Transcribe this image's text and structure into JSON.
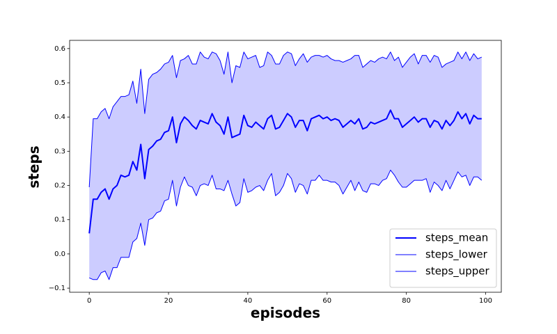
{
  "chart_data": {
    "type": "line",
    "xlabel": "episodes",
    "ylabel": "steps",
    "x": [
      0,
      1,
      2,
      3,
      4,
      5,
      6,
      7,
      8,
      9,
      10,
      11,
      12,
      13,
      14,
      15,
      16,
      17,
      18,
      19,
      20,
      21,
      22,
      23,
      24,
      25,
      26,
      27,
      28,
      29,
      30,
      31,
      32,
      33,
      34,
      35,
      36,
      37,
      38,
      39,
      40,
      41,
      42,
      43,
      44,
      45,
      46,
      47,
      48,
      49,
      50,
      51,
      52,
      53,
      54,
      55,
      56,
      57,
      58,
      59,
      60,
      61,
      62,
      63,
      64,
      65,
      66,
      67,
      68,
      69,
      70,
      71,
      72,
      73,
      74,
      75,
      76,
      77,
      78,
      79,
      80,
      81,
      82,
      83,
      84,
      85,
      86,
      87,
      88,
      89,
      90,
      91,
      92,
      93,
      94,
      95,
      96,
      97,
      98,
      99
    ],
    "series": [
      {
        "name": "steps_mean",
        "color": "#0000ff",
        "linewidth": 2,
        "values": [
          0.06,
          0.16,
          0.16,
          0.18,
          0.19,
          0.16,
          0.19,
          0.2,
          0.23,
          0.225,
          0.23,
          0.27,
          0.245,
          0.32,
          0.22,
          0.305,
          0.315,
          0.33,
          0.335,
          0.355,
          0.36,
          0.4,
          0.325,
          0.38,
          0.4,
          0.39,
          0.375,
          0.365,
          0.39,
          0.385,
          0.38,
          0.41,
          0.385,
          0.375,
          0.35,
          0.4,
          0.34,
          0.345,
          0.35,
          0.405,
          0.375,
          0.37,
          0.385,
          0.375,
          0.365,
          0.395,
          0.405,
          0.365,
          0.37,
          0.39,
          0.41,
          0.4,
          0.37,
          0.39,
          0.39,
          0.36,
          0.395,
          0.4,
          0.405,
          0.395,
          0.4,
          0.39,
          0.395,
          0.39,
          0.37,
          0.38,
          0.39,
          0.38,
          0.395,
          0.365,
          0.37,
          0.385,
          0.38,
          0.385,
          0.39,
          0.395,
          0.42,
          0.395,
          0.395,
          0.37,
          0.38,
          0.39,
          0.4,
          0.385,
          0.395,
          0.395,
          0.37,
          0.39,
          0.385,
          0.365,
          0.39,
          0.375,
          0.39,
          0.415,
          0.395,
          0.41,
          0.38,
          0.405,
          0.395,
          0.395
        ]
      },
      {
        "name": "steps_lower",
        "color": "#0000ff",
        "linewidth": 1,
        "values": [
          -0.07,
          -0.075,
          -0.075,
          -0.055,
          -0.05,
          -0.075,
          -0.04,
          -0.04,
          -0.01,
          -0.01,
          -0.01,
          0.035,
          0.045,
          0.09,
          0.025,
          0.1,
          0.105,
          0.12,
          0.125,
          0.155,
          0.16,
          0.215,
          0.14,
          0.195,
          0.225,
          0.2,
          0.195,
          0.17,
          0.2,
          0.205,
          0.2,
          0.23,
          0.19,
          0.19,
          0.185,
          0.215,
          0.175,
          0.14,
          0.15,
          0.22,
          0.18,
          0.185,
          0.195,
          0.2,
          0.185,
          0.215,
          0.235,
          0.17,
          0.18,
          0.2,
          0.235,
          0.22,
          0.18,
          0.205,
          0.2,
          0.175,
          0.215,
          0.215,
          0.23,
          0.215,
          0.215,
          0.21,
          0.21,
          0.2,
          0.175,
          0.195,
          0.215,
          0.185,
          0.21,
          0.185,
          0.18,
          0.205,
          0.205,
          0.2,
          0.215,
          0.22,
          0.245,
          0.23,
          0.21,
          0.195,
          0.195,
          0.205,
          0.215,
          0.215,
          0.215,
          0.22,
          0.18,
          0.21,
          0.2,
          0.185,
          0.215,
          0.19,
          0.215,
          0.24,
          0.225,
          0.23,
          0.2,
          0.225,
          0.225,
          0.215
        ]
      },
      {
        "name": "steps_upper",
        "color": "#0000ff",
        "linewidth": 1,
        "values": [
          0.195,
          0.395,
          0.395,
          0.415,
          0.425,
          0.395,
          0.43,
          0.445,
          0.46,
          0.46,
          0.465,
          0.505,
          0.44,
          0.54,
          0.41,
          0.51,
          0.525,
          0.53,
          0.54,
          0.555,
          0.56,
          0.58,
          0.515,
          0.565,
          0.57,
          0.58,
          0.555,
          0.555,
          0.59,
          0.575,
          0.57,
          0.59,
          0.585,
          0.565,
          0.525,
          0.59,
          0.5,
          0.55,
          0.545,
          0.59,
          0.57,
          0.575,
          0.58,
          0.545,
          0.55,
          0.59,
          0.58,
          0.555,
          0.555,
          0.58,
          0.59,
          0.585,
          0.55,
          0.57,
          0.585,
          0.56,
          0.575,
          0.58,
          0.58,
          0.575,
          0.58,
          0.57,
          0.565,
          0.565,
          0.56,
          0.565,
          0.57,
          0.58,
          0.58,
          0.545,
          0.555,
          0.565,
          0.56,
          0.57,
          0.575,
          0.57,
          0.59,
          0.565,
          0.575,
          0.545,
          0.56,
          0.575,
          0.585,
          0.555,
          0.58,
          0.58,
          0.56,
          0.58,
          0.575,
          0.545,
          0.555,
          0.56,
          0.565,
          0.59,
          0.57,
          0.59,
          0.565,
          0.585,
          0.57,
          0.575
        ]
      }
    ],
    "fill_color": "#ccccff",
    "xlim": [
      -4.95,
      103.95
    ],
    "ylim": [
      -0.112,
      0.624
    ],
    "xticks": [
      0,
      20,
      40,
      60,
      80,
      100
    ],
    "yticks": [
      {
        "value": -0.1,
        "label": "−0.1"
      },
      {
        "value": 0,
        "label": "0.0"
      },
      0.1,
      0.2,
      0.3,
      0.4,
      0.5,
      0.6
    ],
    "legend": "lower right"
  }
}
